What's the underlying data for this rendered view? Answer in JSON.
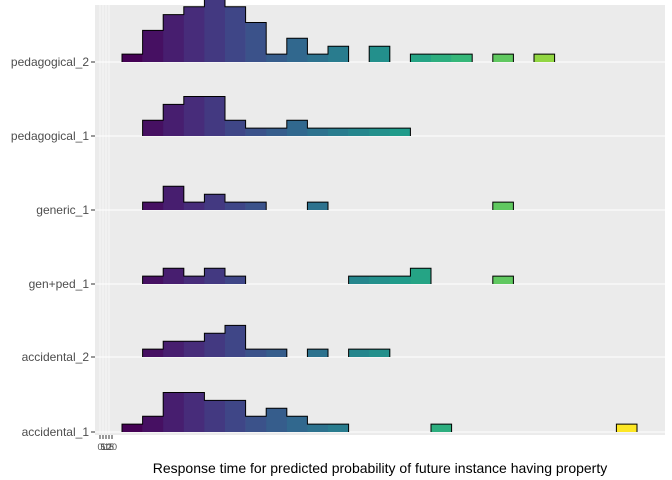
{
  "chart_data": {
    "type": "ridgeline",
    "xlabel": "Response time for predicted probability of future instance having property",
    "ylabel": "",
    "x_tick_labels": [
      "0",
      "5",
      "10",
      "15",
      "20"
    ],
    "grid": true,
    "colormap": "viridis",
    "bin_count": 25,
    "categories": [
      "pedagogical_2",
      "pedagogical_1",
      "generic_1",
      "gen+ped_1",
      "accidental_2",
      "accidental_1"
    ],
    "series": [
      {
        "name": "pedagogical_2",
        "counts": [
          1,
          4,
          6,
          7,
          8,
          7,
          5,
          1,
          3,
          1,
          2,
          0,
          2,
          0,
          1,
          1,
          1,
          0,
          1,
          0,
          1,
          0,
          0,
          0,
          0
        ]
      },
      {
        "name": "pedagogical_1",
        "counts": [
          0,
          2,
          4,
          5,
          5,
          2,
          1,
          1,
          2,
          1,
          1,
          1,
          1,
          1,
          0,
          0,
          0,
          0,
          0,
          0,
          0,
          0,
          0,
          0,
          0
        ]
      },
      {
        "name": "generic_1",
        "counts": [
          0,
          1,
          3,
          1,
          2,
          1,
          1,
          0,
          0,
          1,
          0,
          0,
          0,
          0,
          0,
          0,
          0,
          0,
          1,
          0,
          0,
          0,
          0,
          0,
          0
        ]
      },
      {
        "name": "gen+ped_1",
        "counts": [
          0,
          1,
          2,
          1,
          2,
          1,
          0,
          0,
          0,
          0,
          0,
          1,
          1,
          1,
          2,
          0,
          0,
          0,
          1,
          0,
          0,
          0,
          0,
          0,
          0
        ]
      },
      {
        "name": "accidental_2",
        "counts": [
          0,
          1,
          2,
          2,
          3,
          4,
          1,
          1,
          0,
          1,
          0,
          1,
          1,
          0,
          0,
          0,
          0,
          0,
          0,
          0,
          0,
          0,
          0,
          0,
          0
        ]
      },
      {
        "name": "accidental_1",
        "counts": [
          1,
          2,
          5,
          5,
          4,
          4,
          2,
          3,
          2,
          1,
          1,
          0,
          0,
          0,
          0,
          1,
          0,
          0,
          0,
          0,
          0,
          0,
          0,
          0,
          1
        ]
      }
    ]
  }
}
